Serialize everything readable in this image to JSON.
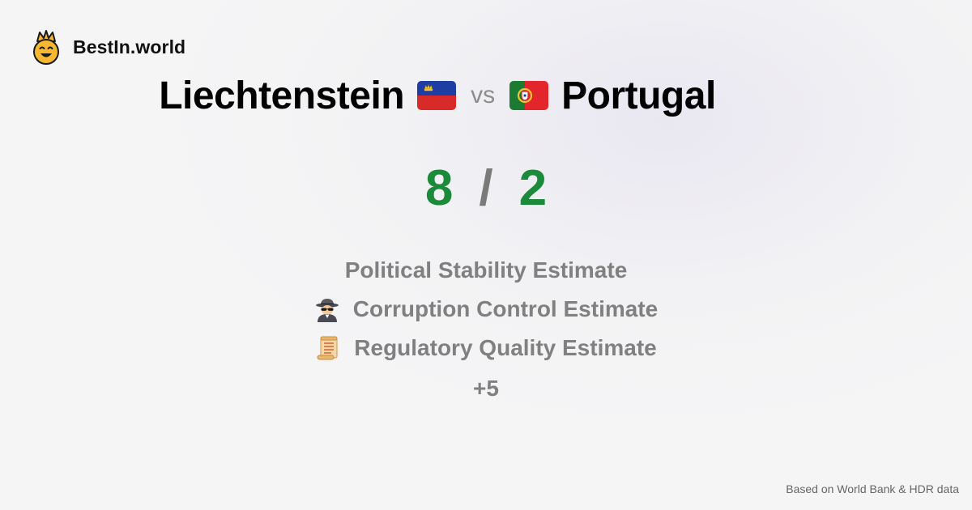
{
  "brand": {
    "name": "BestIn.world",
    "logo_icon": "crowned-smiley-icon"
  },
  "comparison": {
    "left_country": "Liechtenstein",
    "left_flag": "liechtenstein-flag-icon",
    "vs_label": "vs",
    "right_country": "Portugal",
    "right_flag": "portugal-flag-icon"
  },
  "score": {
    "left": "8",
    "separator": "/",
    "right": "2",
    "color": "#1b8a3a"
  },
  "metrics": [
    {
      "label": "Political Stability Estimate",
      "icon": ""
    },
    {
      "label": "Corruption Control Estimate",
      "icon": "detective-icon"
    },
    {
      "label": "Regulatory Quality Estimate",
      "icon": "scroll-icon"
    }
  ],
  "more_label": "+5",
  "footer": {
    "source": "Based on World Bank & HDR data"
  }
}
